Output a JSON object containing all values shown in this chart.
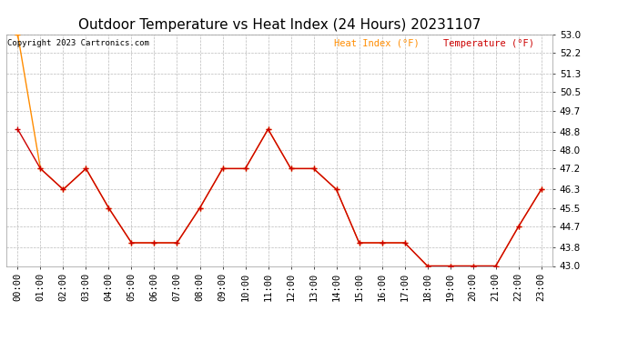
{
  "title": "Outdoor Temperature vs Heat Index (24 Hours) 20231107",
  "copyright": "Copyright 2023 Cartronics.com",
  "legend_heat": "Heat Index (°F)",
  "legend_temp": "Temperature (°F)",
  "x_labels": [
    "00:00",
    "01:00",
    "02:00",
    "03:00",
    "04:00",
    "05:00",
    "06:00",
    "07:00",
    "08:00",
    "09:00",
    "10:00",
    "11:00",
    "12:00",
    "13:00",
    "14:00",
    "15:00",
    "16:00",
    "17:00",
    "18:00",
    "19:00",
    "20:00",
    "21:00",
    "22:00",
    "23:00"
  ],
  "temperature": [
    48.9,
    47.2,
    46.3,
    47.2,
    45.5,
    44.0,
    44.0,
    44.0,
    45.5,
    47.2,
    47.2,
    48.9,
    47.2,
    47.2,
    46.3,
    44.0,
    44.0,
    44.0,
    43.0,
    43.0,
    43.0,
    43.0,
    44.7,
    46.3
  ],
  "heat_index": [
    53.0,
    47.2,
    46.3,
    47.2,
    45.5,
    44.0,
    44.0,
    44.0,
    45.5,
    47.2,
    47.2,
    48.9,
    47.2,
    47.2,
    46.3,
    44.0,
    44.0,
    44.0,
    43.0,
    43.0,
    43.0,
    43.0,
    44.7,
    46.3
  ],
  "ylim_min": 43.0,
  "ylim_max": 53.0,
  "yticks": [
    43.0,
    43.8,
    44.7,
    45.5,
    46.3,
    47.2,
    48.0,
    48.8,
    49.7,
    50.5,
    51.3,
    52.2,
    53.0
  ],
  "temp_color": "#cc0000",
  "heat_color": "#ff8c00",
  "bg_color": "#ffffff",
  "grid_color": "#bbbbbb",
  "title_fontsize": 11,
  "label_fontsize": 7.5,
  "copyright_fontsize": 6.5
}
